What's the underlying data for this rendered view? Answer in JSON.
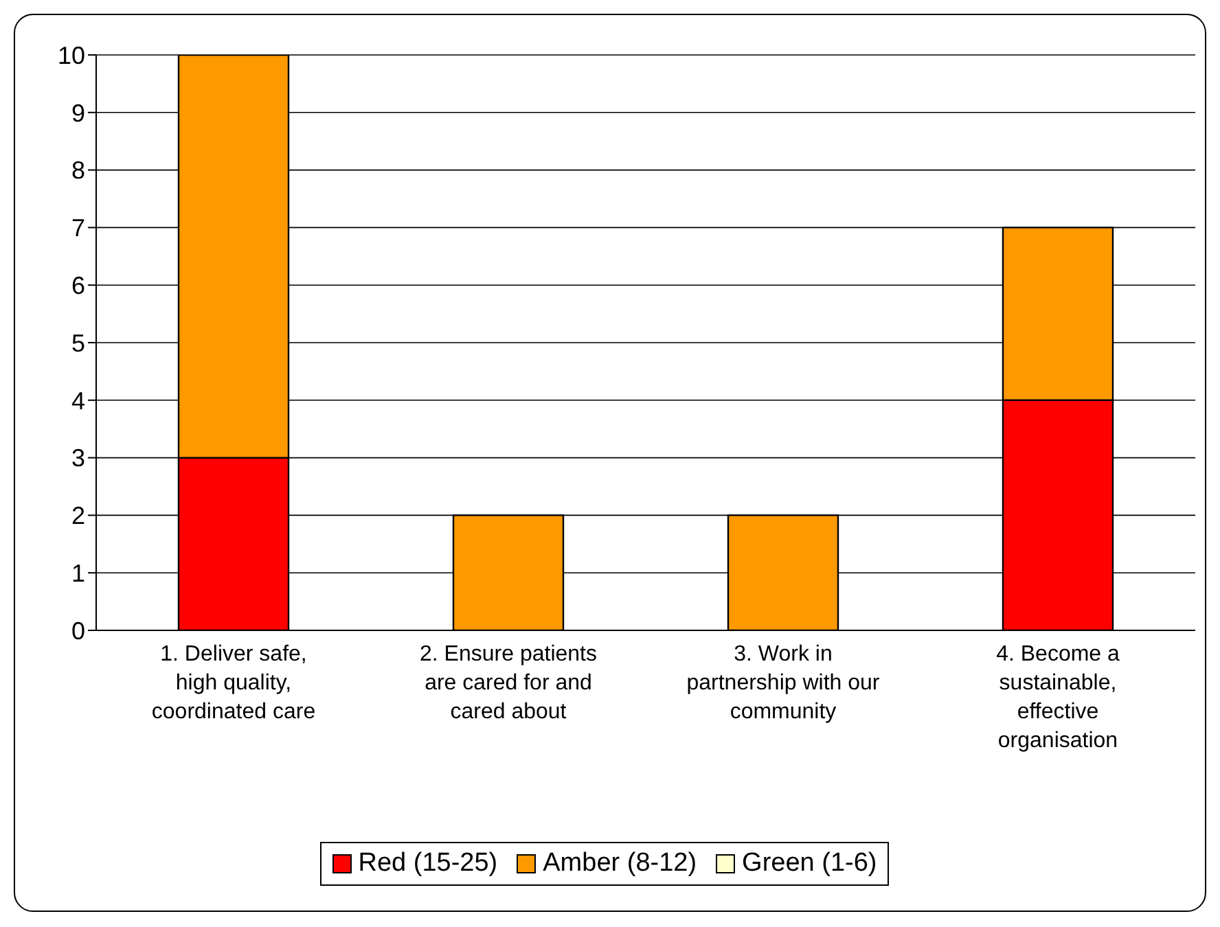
{
  "chart_data": {
    "type": "bar",
    "stacked": true,
    "categories": [
      "1. Deliver safe, high quality, coordinated care",
      "2. Ensure patients are cared for and cared about",
      "3. Work in partnership with our community",
      "4. Become a sustainable, effective organisation"
    ],
    "series": [
      {
        "name": "Red (15-25)",
        "color": "#ff0000",
        "values": [
          3,
          0,
          0,
          4
        ]
      },
      {
        "name": "Amber (8-12)",
        "color": "#ff9900",
        "values": [
          7,
          2,
          2,
          3
        ]
      },
      {
        "name": "Green (1-6)",
        "color": "#ffffcc",
        "values": [
          0,
          0,
          0,
          0
        ]
      }
    ],
    "ylim": [
      0,
      10
    ],
    "yticks": [
      0,
      1,
      2,
      3,
      4,
      5,
      6,
      7,
      8,
      9,
      10
    ],
    "grid": "y",
    "legend": "bottom"
  }
}
